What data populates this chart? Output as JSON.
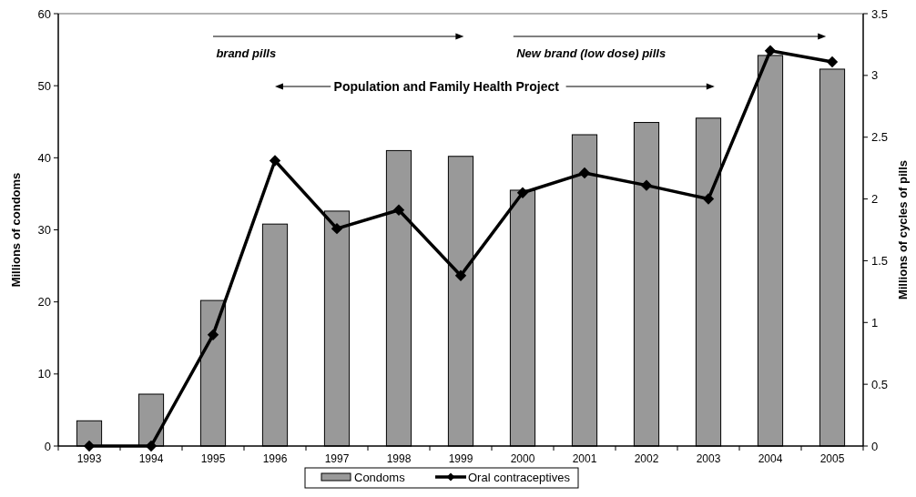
{
  "chart_data": {
    "type": "bar",
    "categories": [
      "1993",
      "1994",
      "1995",
      "1996",
      "1997",
      "1998",
      "1999",
      "2000",
      "2001",
      "2002",
      "2003",
      "2004",
      "2005"
    ],
    "series": [
      {
        "name": "Condoms",
        "color": "#999999",
        "values": [
          3.5,
          7.2,
          20.2,
          30.8,
          32.6,
          41.0,
          40.2,
          35.5,
          43.2,
          44.9,
          45.5,
          54.2,
          52.3
        ]
      },
      {
        "name": "Oral contraceptives",
        "type": "line",
        "axis": "y2",
        "color": "#000000",
        "values": [
          0,
          0,
          0.9,
          2.31,
          1.76,
          1.91,
          1.38,
          2.05,
          2.21,
          2.11,
          2.0,
          3.2,
          3.11
        ]
      }
    ],
    "ylabel": "Millions of condoms",
    "y2label": "Millions of cycles of pills",
    "ylim": [
      0,
      60
    ],
    "yticks": [
      0,
      10,
      20,
      30,
      40,
      50,
      60
    ],
    "y2lim": [
      0,
      3.5
    ],
    "y2ticks": [
      0,
      0.5,
      1,
      1.5,
      2,
      2.5,
      3,
      3.5
    ],
    "annotations": [
      "brand pills",
      "New brand (low dose) pills",
      "Population and Family Health Project"
    ],
    "marker": "diamond",
    "line_style": "solid",
    "legend": "bottom",
    "grid": false
  }
}
